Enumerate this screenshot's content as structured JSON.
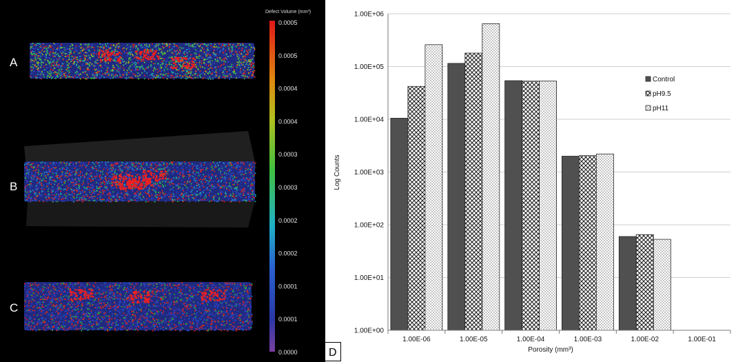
{
  "left_panel": {
    "samples": [
      {
        "label": "A",
        "style": "mixed",
        "hotspots": [
          [
            0.35,
            0.35
          ],
          [
            0.52,
            0.3
          ],
          [
            0.68,
            0.55
          ]
        ]
      },
      {
        "label": "B",
        "style": "blue-red",
        "hotspots": [
          [
            0.42,
            0.45
          ],
          [
            0.46,
            0.55
          ],
          [
            0.5,
            0.5
          ],
          [
            0.56,
            0.35
          ]
        ]
      },
      {
        "label": "C",
        "style": "blue-red-dense",
        "hotspots": [
          [
            0.25,
            0.25
          ],
          [
            0.5,
            0.3
          ],
          [
            0.83,
            0.25
          ]
        ]
      }
    ],
    "colorbar": {
      "title": "Defect Volume (mm³)",
      "labels": [
        "0.0005",
        "0.0005",
        "0.0004",
        "0.0004",
        "0.0003",
        "0.0003",
        "0.0002",
        "0.0002",
        "0.0001",
        "0.0001",
        "0.0000"
      ]
    }
  },
  "panel_d_label": "D",
  "chart_data": {
    "type": "bar",
    "ylabel": "Log Counts",
    "xlabel": "Porosity (mm³)",
    "yscale": "log",
    "ylim": [
      1,
      1000000
    ],
    "y_ticks": [
      "1.00E+00",
      "1.00E+01",
      "1.00E+02",
      "1.00E+03",
      "1.00E+04",
      "1.00E+05",
      "1.00E+06"
    ],
    "categories": [
      "1.00E-06",
      "1.00E-05",
      "1.00E-04",
      "1.00E-03",
      "1.00E-02",
      "1.00E-01"
    ],
    "grid": true,
    "legend_position": "right",
    "series": [
      {
        "name": "Control",
        "pattern": "solid",
        "color": "#505050",
        "values": [
          10500,
          115000,
          54000,
          2000,
          60,
          0
        ]
      },
      {
        "name": "pH9.5",
        "pattern": "crosshatch",
        "color": "#3a3a3a",
        "values": [
          42000,
          180000,
          53000,
          2050,
          65,
          0
        ]
      },
      {
        "name": "pH11",
        "pattern": "dots",
        "color": "#777777",
        "values": [
          260000,
          650000,
          53000,
          2200,
          53,
          0
        ]
      }
    ]
  }
}
